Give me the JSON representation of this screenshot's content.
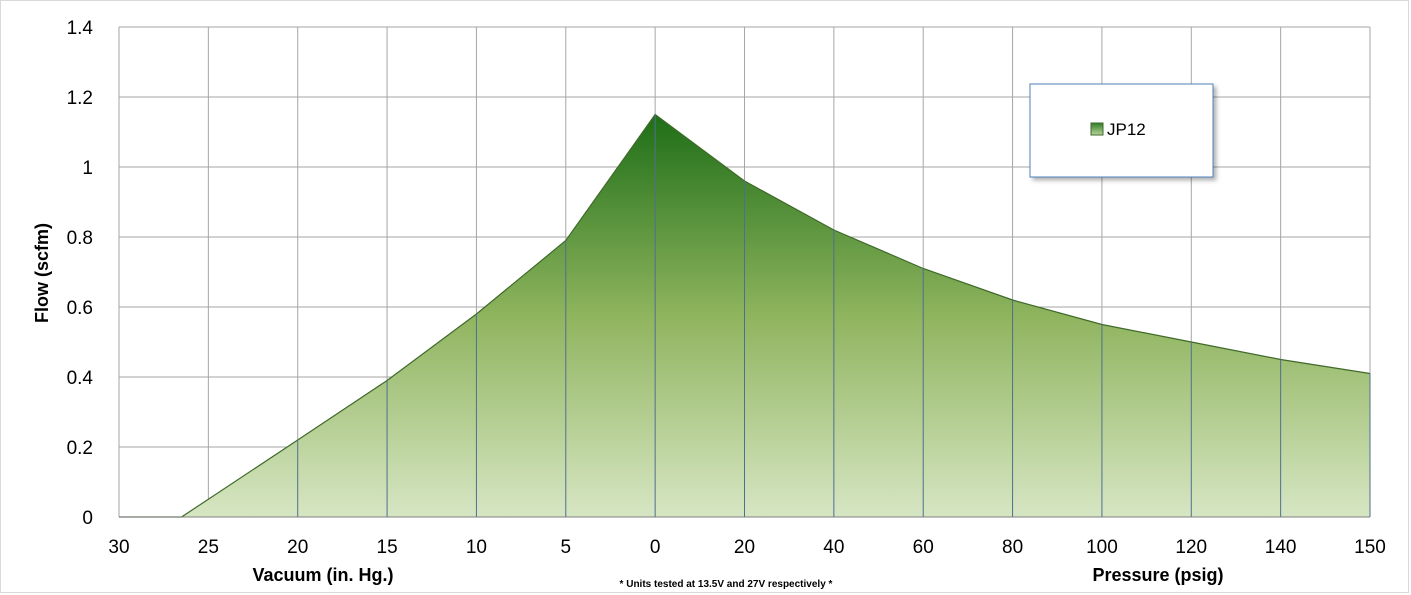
{
  "chart_data": {
    "type": "area",
    "title": "",
    "ylabel": "Flow (scfm)",
    "xlabels": {
      "left": "Vacuum (in. Hg.)",
      "right": "Pressure (psig)"
    },
    "note": "* Units tested at 13.5V and 27V respectively *",
    "ylim": [
      0,
      1.4
    ],
    "yticks": [
      "0",
      "0.2",
      "0.4",
      "0.6",
      "0.8",
      "1",
      "1.2",
      "1.4"
    ],
    "categories": [
      "30",
      "25",
      "20",
      "15",
      "10",
      "5",
      "0",
      "20",
      "40",
      "60",
      "80",
      "100",
      "120",
      "140",
      "150"
    ],
    "grid": true,
    "legend_position": "top-right",
    "series": [
      {
        "name": "JP12",
        "points": [
          {
            "x": 30,
            "y": 0
          },
          {
            "x": 26.5,
            "y": 0
          },
          {
            "x": 20,
            "y": 0.22
          },
          {
            "x": 15,
            "y": 0.39
          },
          {
            "x": 10,
            "y": 0.58
          },
          {
            "x": 5,
            "y": 0.79
          },
          {
            "x": 0,
            "y": 1.15
          },
          {
            "x": 20,
            "y": 0.96
          },
          {
            "x": 40,
            "y": 0.82
          },
          {
            "x": 60,
            "y": 0.71
          },
          {
            "x": 80,
            "y": 0.62
          },
          {
            "x": 100,
            "y": 0.55
          },
          {
            "x": 120,
            "y": 0.5
          },
          {
            "x": 140,
            "y": 0.45
          },
          {
            "x": 150,
            "y": 0.41
          }
        ]
      }
    ],
    "colors": {
      "fill_top": "#1e6e17",
      "fill_mid": "#8fb45e",
      "fill_bottom": "#d7e6c3",
      "line": "#3f6a2a",
      "grid": "#a6a6a6",
      "drop_line": "#4f6f8f",
      "legend_border": "#4f81bd"
    }
  }
}
